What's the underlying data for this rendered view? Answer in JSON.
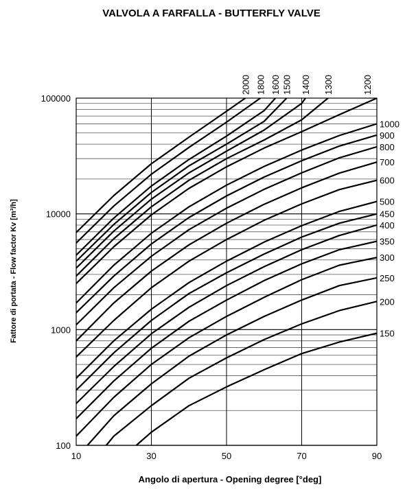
{
  "chart_data": {
    "type": "line",
    "title": "VALVOLA A FARFALLA - BUTTERFLY VALVE",
    "xlabel": "Angolo di apertura - Opening degree  [°deg]",
    "ylabel": "Fattore di portata - Flow factor Kv  [m³/h]",
    "x_scale": "linear",
    "y_scale": "log",
    "xlim": [
      10,
      90
    ],
    "ylim": [
      100,
      100000
    ],
    "x_ticks": [
      "10",
      "30",
      "50",
      "70",
      "90"
    ],
    "y_ticks": [
      "100",
      "1000",
      "10000",
      "100000"
    ],
    "grid": true,
    "series": [
      {
        "name": "150",
        "x": [
          26,
          30,
          40,
          50,
          60,
          70,
          80,
          90
        ],
        "y": [
          100,
          130,
          220,
          320,
          450,
          620,
          780,
          930
        ]
      },
      {
        "name": "200",
        "x": [
          18,
          20,
          30,
          40,
          50,
          60,
          70,
          80,
          90
        ],
        "y": [
          100,
          120,
          220,
          380,
          570,
          820,
          1120,
          1460,
          1750
        ]
      },
      {
        "name": "250",
        "x": [
          13,
          20,
          30,
          40,
          50,
          60,
          70,
          80,
          90
        ],
        "y": [
          100,
          180,
          340,
          590,
          900,
          1300,
          1800,
          2400,
          2800
        ]
      },
      {
        "name": "300",
        "x": [
          10,
          20,
          30,
          40,
          50,
          60,
          70,
          80,
          90
        ],
        "y": [
          120,
          260,
          500,
          850,
          1300,
          1900,
          2700,
          3600,
          4200
        ]
      },
      {
        "name": "350",
        "x": [
          10,
          20,
          30,
          40,
          50,
          60,
          70,
          80,
          90
        ],
        "y": [
          170,
          360,
          690,
          1180,
          1800,
          2650,
          3700,
          4900,
          5800
        ]
      },
      {
        "name": "400",
        "x": [
          10,
          20,
          30,
          40,
          50,
          60,
          70,
          80,
          90
        ],
        "y": [
          230,
          480,
          920,
          1560,
          2400,
          3500,
          4900,
          6500,
          8000
        ]
      },
      {
        "name": "450",
        "x": [
          10,
          20,
          30,
          40,
          50,
          60,
          70,
          80,
          90
        ],
        "y": [
          300,
          630,
          1200,
          2050,
          3100,
          4500,
          6300,
          8300,
          10000
        ]
      },
      {
        "name": "500",
        "x": [
          10,
          20,
          30,
          40,
          50,
          60,
          70,
          80,
          90
        ],
        "y": [
          380,
          800,
          1500,
          2550,
          3900,
          5700,
          7900,
          10500,
          12800
        ]
      },
      {
        "name": "600",
        "x": [
          10,
          20,
          30,
          40,
          50,
          60,
          70,
          80,
          90
        ],
        "y": [
          580,
          1200,
          2300,
          3900,
          6000,
          8800,
          12200,
          16200,
          19500
        ]
      },
      {
        "name": "700",
        "x": [
          10,
          20,
          30,
          40,
          50,
          60,
          70,
          80,
          90
        ],
        "y": [
          800,
          1700,
          3200,
          5400,
          8300,
          12100,
          16800,
          22500,
          28000
        ]
      },
      {
        "name": "800",
        "x": [
          10,
          20,
          30,
          40,
          50,
          60,
          70,
          80,
          90
        ],
        "y": [
          1100,
          2300,
          4300,
          7300,
          11200,
          16300,
          22600,
          30500,
          38000
        ]
      },
      {
        "name": "900",
        "x": [
          10,
          20,
          30,
          40,
          50,
          60,
          70,
          80,
          90
        ],
        "y": [
          1400,
          2900,
          5500,
          9300,
          14300,
          20800,
          28800,
          38500,
          48000
        ]
      },
      {
        "name": "1000",
        "x": [
          10,
          20,
          30,
          40,
          50,
          60,
          70,
          80,
          90
        ],
        "y": [
          1700,
          3600,
          6800,
          11500,
          17700,
          25700,
          35600,
          47500,
          60000
        ]
      },
      {
        "name": "1200",
        "x": [
          10,
          20,
          30,
          40,
          50,
          60,
          70,
          80,
          90
        ],
        "y": [
          2500,
          5200,
          9800,
          16600,
          25500,
          37000,
          51300,
          72000,
          100000
        ]
      },
      {
        "name": "1300",
        "x": [
          10,
          20,
          30,
          40,
          50,
          60,
          70,
          77
        ],
        "y": [
          2900,
          6100,
          11500,
          19500,
          30000,
          43500,
          65000,
          100000
        ]
      },
      {
        "name": "1400",
        "x": [
          10,
          20,
          30,
          40,
          50,
          60,
          70,
          71
        ],
        "y": [
          3400,
          7100,
          13400,
          22600,
          34800,
          53000,
          90000,
          100000
        ]
      },
      {
        "name": "1500",
        "x": [
          10,
          20,
          30,
          40,
          50,
          60,
          66
        ],
        "y": [
          3900,
          8100,
          15300,
          26000,
          40000,
          63000,
          100000
        ]
      },
      {
        "name": "1600",
        "x": [
          10,
          20,
          30,
          40,
          50,
          60,
          63
        ],
        "y": [
          4400,
          9200,
          17400,
          29500,
          47000,
          78000,
          100000
        ]
      },
      {
        "name": "1800",
        "x": [
          10,
          20,
          30,
          40,
          50,
          59
        ],
        "y": [
          5600,
          11700,
          22000,
          37500,
          62000,
          100000
        ]
      },
      {
        "name": "2000",
        "x": [
          10,
          20,
          30,
          40,
          50,
          55
        ],
        "y": [
          6900,
          14400,
          27100,
          46000,
          77000,
          100000
        ]
      }
    ],
    "right_labels": [
      "1000",
      "900",
      "800",
      "700",
      "600",
      "500",
      "450",
      "400",
      "350",
      "300",
      "250",
      "200",
      "150"
    ],
    "top_labels": [
      "2000",
      "1800",
      "1600",
      "1500",
      "1400",
      "1300",
      "1200"
    ]
  }
}
